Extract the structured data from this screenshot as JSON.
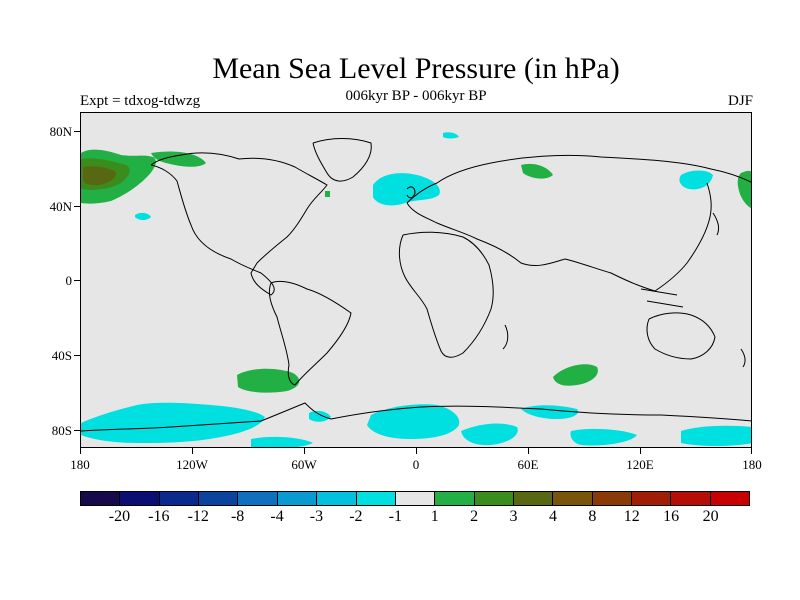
{
  "title": "Mean Sea Level Pressure (in hPa)",
  "subtitle": "006kyr BP - 006kyr BP",
  "left_label": "Expt = tdxog-tdwzg",
  "right_label": "DJF",
  "lat_labels": [
    "80N",
    "40N",
    "0",
    "40S",
    "80S"
  ],
  "lon_labels": [
    "180",
    "120W",
    "60W",
    "0",
    "60E",
    "120E",
    "180"
  ],
  "colorbar": {
    "colors": [
      "#170a4a",
      "#0b0f74",
      "#0a2a8e",
      "#0a449e",
      "#0f70c0",
      "#0a9ad2",
      "#03c0de",
      "#00e0e0",
      "#e6e6e6",
      "#22b044",
      "#3a8c1c",
      "#586812",
      "#7a5408",
      "#8a3a06",
      "#a01e06",
      "#b40e06",
      "#c80000"
    ],
    "labels": [
      "-20",
      "-16",
      "-12",
      "-8",
      "-4",
      "-3",
      "-2",
      "-1",
      "1",
      "2",
      "3",
      "4",
      "8",
      "12",
      "16",
      "20"
    ]
  },
  "legend_colors": {
    "negative_1_to_2": "#00e0e0",
    "positive_1_to_2": "#22b044",
    "positive_2_to_3": "#3a8c1c",
    "positive_3_to_4": "#586812",
    "positive_4_to_8": "#7a5408"
  }
}
